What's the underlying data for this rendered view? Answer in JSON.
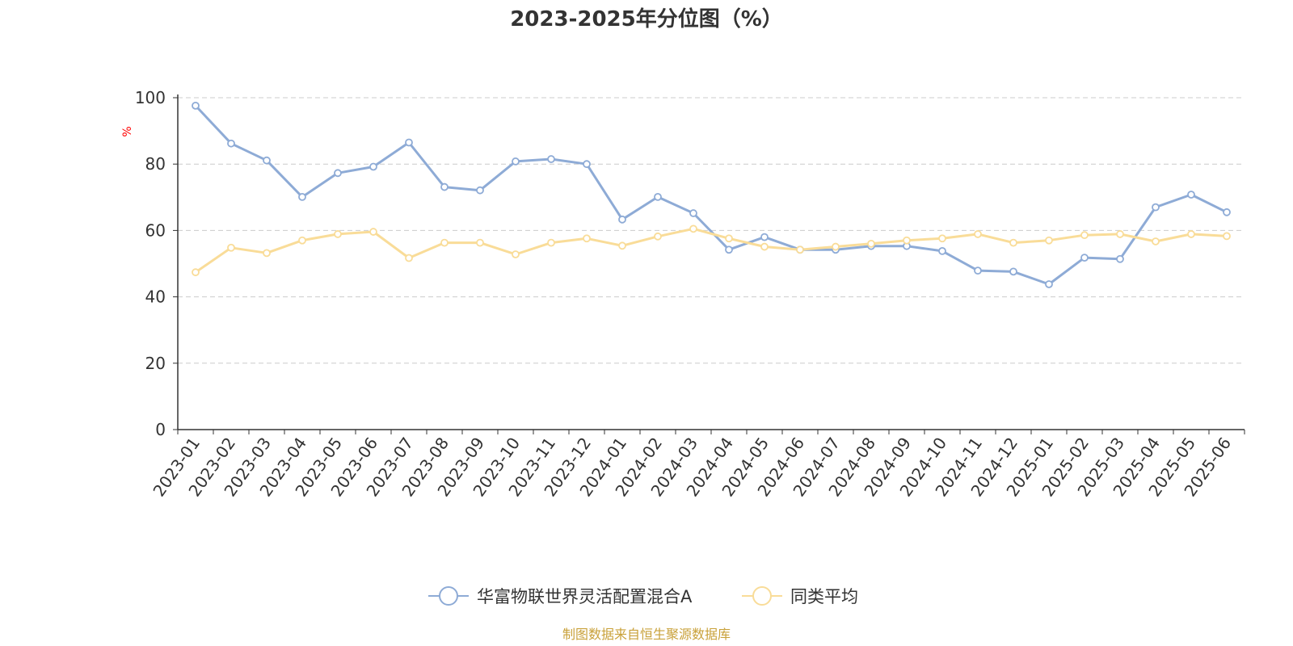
{
  "colors": {
    "series_fund": "#8eabd6",
    "series_avg": "#f9dc98",
    "axis": "#333333",
    "grid": "#cccccc",
    "ylabel": "#ff0000",
    "source": "#c9a13a"
  },
  "legend_placement": "bottom-center",
  "source_note": "制图数据来自恒生聚源数据库",
  "chart_data": {
    "type": "line",
    "title": "2023-2025年分位图（%）",
    "xlabel": "",
    "ylabel": "%",
    "ylim": [
      0,
      100
    ],
    "yticks": [
      "0",
      "20",
      "40",
      "60",
      "80",
      "100"
    ],
    "grid": true,
    "categories": [
      "2023-01",
      "2023-02",
      "2023-03",
      "2023-04",
      "2023-05",
      "2023-06",
      "2023-07",
      "2023-08",
      "2023-09",
      "2023-10",
      "2023-11",
      "2023-12",
      "2024-01",
      "2024-02",
      "2024-03",
      "2024-04",
      "2024-05",
      "2024-06",
      "2024-07",
      "2024-08",
      "2024-09",
      "2024-10",
      "2024-11",
      "2024-12",
      "2025-01",
      "2025-02",
      "2025-03",
      "2025-04",
      "2025-05",
      "2025-06"
    ],
    "series": [
      {
        "name": "华富物联世界灵活配置混合A",
        "values": [
          97.6,
          86.2,
          81.1,
          70.1,
          77.3,
          79.2,
          86.5,
          73.1,
          72.1,
          80.8,
          81.5,
          80.0,
          63.3,
          70.1,
          65.2,
          54.2,
          58.0,
          54.2,
          54.2,
          55.3,
          55.3,
          53.8,
          47.9,
          47.6,
          43.8,
          51.8,
          51.4,
          67.0,
          70.8,
          65.5
        ]
      },
      {
        "name": "同类平均",
        "values": [
          47.4,
          54.8,
          53.2,
          57.0,
          58.9,
          59.6,
          51.7,
          56.3,
          56.3,
          52.8,
          56.3,
          57.6,
          55.4,
          58.2,
          60.5,
          57.6,
          55.1,
          54.2,
          55.1,
          56.0,
          57.0,
          57.6,
          58.9,
          56.3,
          57.0,
          58.6,
          58.9,
          56.7,
          58.9,
          58.3
        ]
      }
    ]
  }
}
